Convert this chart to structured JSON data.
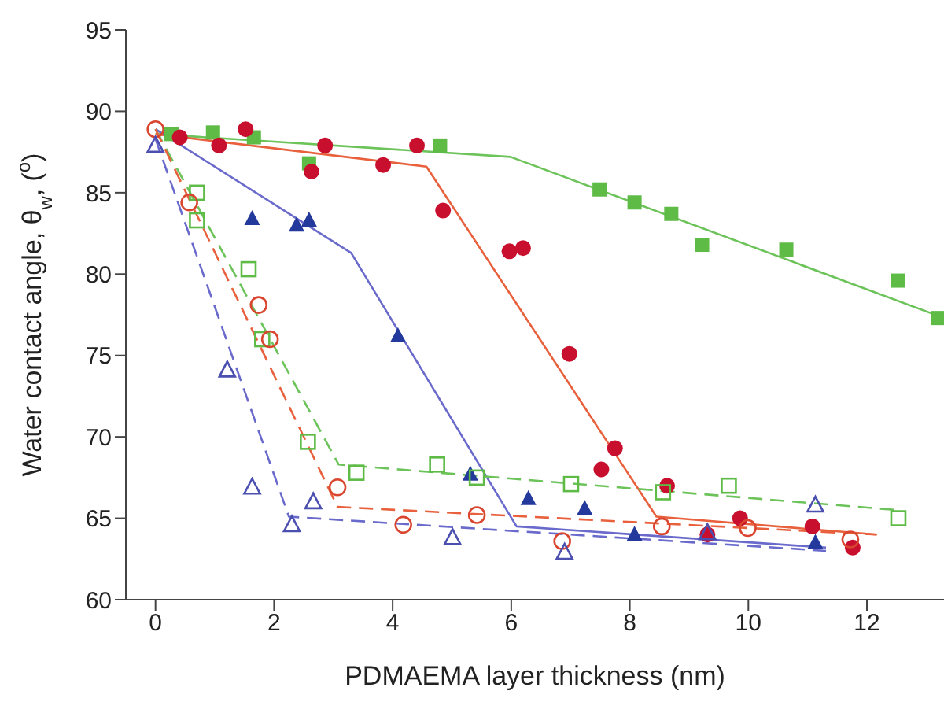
{
  "chart_data": {
    "type": "scatter",
    "xlabel": "PDMAEMA layer thickness (nm)",
    "ylabel": "Water contact angle, θ$_{w}$, ($^{o}$)",
    "xlim": [
      -0.5,
      13.3
    ],
    "xticks": [
      0,
      2,
      4,
      6,
      8,
      10,
      12
    ],
    "ylim": [
      60,
      95
    ],
    "yticks": [
      60,
      65,
      70,
      75,
      80,
      85,
      90,
      95
    ],
    "grid": false,
    "series": [
      {
        "marker": "square",
        "color": "#5dbb46",
        "x": [
          0.27,
          0.97,
          1.66,
          2.59,
          4.8,
          7.49,
          8.08,
          8.7,
          9.22,
          10.64,
          12.53,
          13.2
        ],
        "values": [
          88.6,
          88.7,
          88.4,
          86.8,
          87.9,
          85.2,
          84.4,
          83.7,
          81.8,
          81.5,
          79.6,
          77.3
        ]
      },
      {
        "marker": "circle",
        "color": "#c8102e",
        "x": [
          0.41,
          1.07,
          1.52,
          2.63,
          2.86,
          3.84,
          4.41,
          4.85,
          5.97,
          6.2,
          6.98,
          7.52,
          7.75,
          8.63,
          9.86,
          9.31,
          11.08,
          11.76
        ],
        "values": [
          88.4,
          87.9,
          88.9,
          86.3,
          87.9,
          86.7,
          87.9,
          83.9,
          81.4,
          81.6,
          75.1,
          68.0,
          69.3,
          67.0,
          65.0,
          64.0,
          64.5,
          63.2
        ]
      },
      {
        "marker": "triangle",
        "color": "#23399b",
        "x": [
          1.63,
          2.38,
          2.59,
          4.09,
          5.31,
          6.29,
          7.24,
          8.08,
          11.13
        ],
        "values": [
          83.4,
          83.0,
          83.3,
          76.2,
          67.7,
          66.2,
          65.6,
          64.0,
          63.5
        ]
      },
      {
        "marker": "square-open",
        "color": "#5dbb46",
        "x": [
          0.7,
          0.7,
          1.57,
          1.8,
          2.57,
          3.39,
          4.75,
          5.42,
          7.01,
          8.56,
          9.67,
          12.53
        ],
        "values": [
          85.0,
          83.3,
          80.3,
          76.0,
          69.7,
          67.8,
          68.3,
          67.5,
          67.1,
          66.6,
          67.0,
          65.0
        ]
      },
      {
        "marker": "circle-open",
        "color": "#d9452e",
        "x": [
          0,
          0.57,
          1.74,
          1.93,
          3.07,
          4.18,
          5.42,
          6.86,
          8.54,
          9.99,
          11.72
        ],
        "values": [
          88.9,
          84.4,
          78.1,
          76.0,
          66.9,
          64.6,
          65.2,
          63.6,
          64.5,
          64.4,
          63.7
        ]
      },
      {
        "marker": "triangle-open",
        "color": "#4a4fb0",
        "x": [
          0,
          1.21,
          1.63,
          2.3,
          2.66,
          5.01,
          6.9,
          9.31,
          11.13
        ],
        "values": [
          87.9,
          74.1,
          66.9,
          64.6,
          66.0,
          63.8,
          62.9,
          64.1,
          65.8
        ]
      },
      {
        "type": "line",
        "line_style": "solid",
        "color": "#6cc35a",
        "x": [
          0,
          5.99,
          13.3
        ],
        "values": [
          88.6,
          87.2,
          77.3
        ]
      },
      {
        "type": "line",
        "line_style": "solid",
        "color": "#e8603c",
        "x": [
          0,
          4.57,
          8.45,
          12.17
        ],
        "values": [
          88.6,
          86.6,
          65.1,
          64.0
        ]
      },
      {
        "type": "line",
        "line_style": "solid",
        "color": "#6a6acc",
        "x": [
          0,
          3.3,
          6.09,
          11.31
        ],
        "values": [
          88.9,
          81.3,
          64.5,
          63.2
        ]
      },
      {
        "type": "line",
        "line_style": "dashed",
        "color": "#6cc35a",
        "x": [
          0,
          3.09,
          12.53
        ],
        "values": [
          88.9,
          68.3,
          65.5
        ]
      },
      {
        "type": "line",
        "line_style": "dashed",
        "color": "#e8603c",
        "x": [
          0,
          3.07,
          12.15
        ],
        "values": [
          88.9,
          65.7,
          64.0
        ]
      },
      {
        "type": "line",
        "line_style": "dashed",
        "color": "#6a6acc",
        "x": [
          0,
          2.25,
          11.31
        ],
        "values": [
          88.3,
          65.1,
          63.0
        ]
      }
    ]
  }
}
